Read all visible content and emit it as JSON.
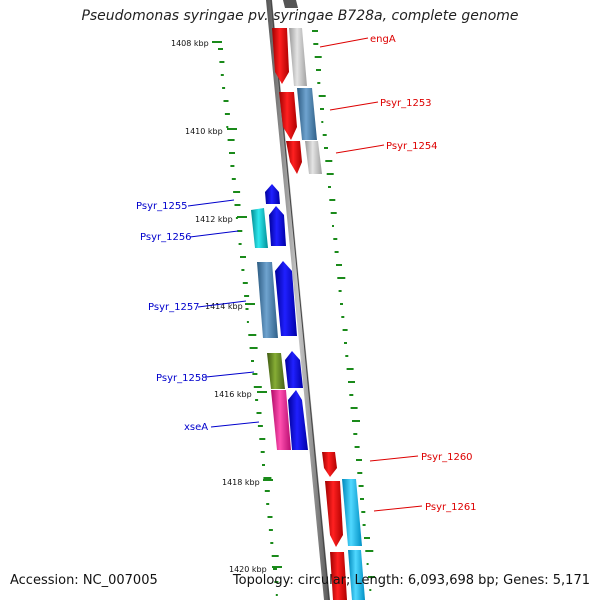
{
  "title": "Pseudomonas syringae pv. syringae B728a, complete genome",
  "footer": {
    "accession": "Accession: NC_007005",
    "summary": "Topology: circular; Length: 6,093,698 bp; Genes: 5,171"
  },
  "colors": {
    "forward_strand": "#ff0000",
    "forward_strand_alt": "#c0c0c0",
    "reverse_strand": "#0000ff",
    "reverse_strand_cyan": "#00c0c8",
    "reverse_strand_steel": "#4682b4",
    "reverse_strand_olive": "#6b8e23",
    "reverse_strand_magenta": "#ff1493",
    "light_blue": "#00bfff",
    "gc_skew": "#228b22",
    "backbone": "#808080",
    "label_forward": "#dd0000",
    "label_reverse": "#0000cc"
  },
  "kbp_ticks": [
    "1408 kbp",
    "1410 kbp",
    "1412 kbp",
    "1414 kbp",
    "1416 kbp",
    "1418 kbp",
    "1420 kbp"
  ],
  "gene_labels": [
    "engA",
    "Psyr_1253",
    "Psyr_1254",
    "Psyr_1255",
    "Psyr_1256",
    "Psyr_1257",
    "Psyr_1258",
    "xseA",
    "Psyr_1260",
    "Psyr_1261"
  ]
}
